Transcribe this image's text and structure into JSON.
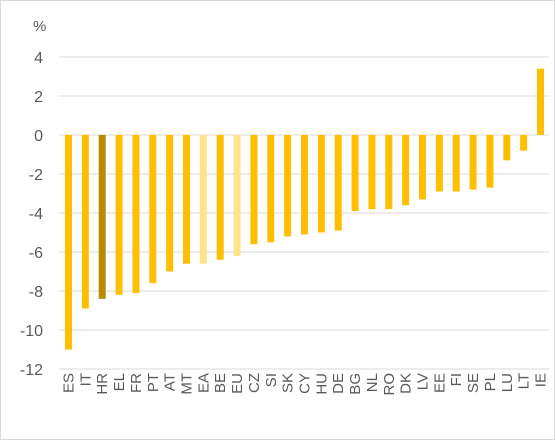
{
  "chart_data": {
    "type": "bar",
    "unit_label": "%",
    "ylim": [
      -12,
      4
    ],
    "yticks": [
      4,
      2,
      0,
      -2,
      -4,
      -6,
      -8,
      -10,
      -12
    ],
    "grid": true,
    "categories": [
      "ES",
      "IT",
      "HR",
      "EL",
      "FR",
      "PT",
      "AT",
      "MT",
      "EA",
      "BE",
      "EU",
      "CZ",
      "SI",
      "SK",
      "CY",
      "HU",
      "DE",
      "BG",
      "NL",
      "RO",
      "DK",
      "LV",
      "EE",
      "FI",
      "SE",
      "PL",
      "LU",
      "LT",
      "IE"
    ],
    "values": [
      -11.0,
      -8.9,
      -8.4,
      -8.2,
      -8.1,
      -7.6,
      -7.0,
      -6.6,
      -6.6,
      -6.4,
      -6.2,
      -5.6,
      -5.5,
      -5.2,
      -5.1,
      -5.0,
      -4.9,
      -3.9,
      -3.8,
      -3.8,
      -3.6,
      -3.3,
      -2.9,
      -2.9,
      -2.8,
      -2.7,
      -1.3,
      -0.8,
      3.4
    ],
    "colors": {
      "default": "#FFBE00",
      "highlight": "#B78A00",
      "aggregate": "#FFE38B"
    },
    "bar_color_keys": [
      "default",
      "default",
      "highlight",
      "default",
      "default",
      "default",
      "default",
      "default",
      "aggregate",
      "default",
      "aggregate",
      "default",
      "default",
      "default",
      "default",
      "default",
      "default",
      "default",
      "default",
      "default",
      "default",
      "default",
      "default",
      "default",
      "default",
      "default",
      "default",
      "default",
      "default"
    ]
  }
}
